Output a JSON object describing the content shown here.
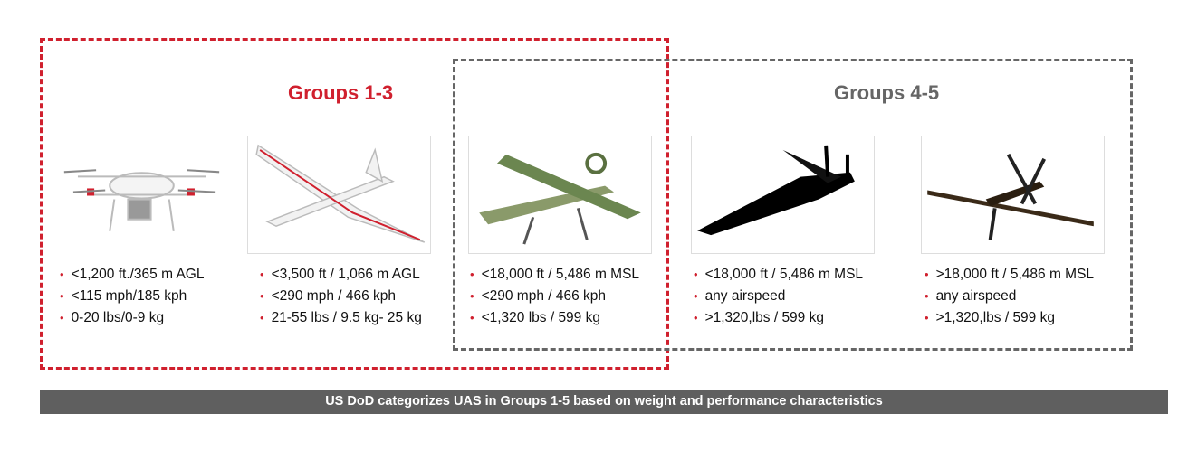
{
  "groups": {
    "group_1_3": "Groups 1-3",
    "group_4_5": "Groups 4-5"
  },
  "columns": [
    {
      "image": "quadcopter-drone",
      "specs": [
        "<1,200 ft./365 m AGL",
        "<115 mph/185 kph",
        "0-20 lbs/0-9 kg"
      ]
    },
    {
      "image": "fixed-wing-small-uav",
      "specs": [
        "<3,500 ft / 1,066 m AGL",
        "<290 mph / 466 kph",
        "21-55 lbs / 9.5 kg- 25 kg"
      ]
    },
    {
      "image": "camouflage-tactical-uav",
      "specs": [
        "<18,000 ft / 5,486 m MSL",
        "<290 mph / 466 kph",
        "<1,320 lbs / 599 kg"
      ]
    },
    {
      "image": "black-medium-altitude-uav",
      "specs": [
        "<18,000 ft / 5,486 m MSL",
        "any airspeed",
        ">1,320,lbs / 599 kg"
      ]
    },
    {
      "image": "brown-long-endurance-uav",
      "specs": [
        ">18,000 ft / 5,486 m MSL",
        "any airspeed",
        ">1,320,lbs / 599 kg"
      ]
    }
  ],
  "footer": "US DoD categorizes UAS in Groups 1-5 based on weight and performance characteristics",
  "colors": {
    "accent": "#d0202e",
    "gray": "#666666",
    "footer_bg": "#5f5f5f"
  }
}
